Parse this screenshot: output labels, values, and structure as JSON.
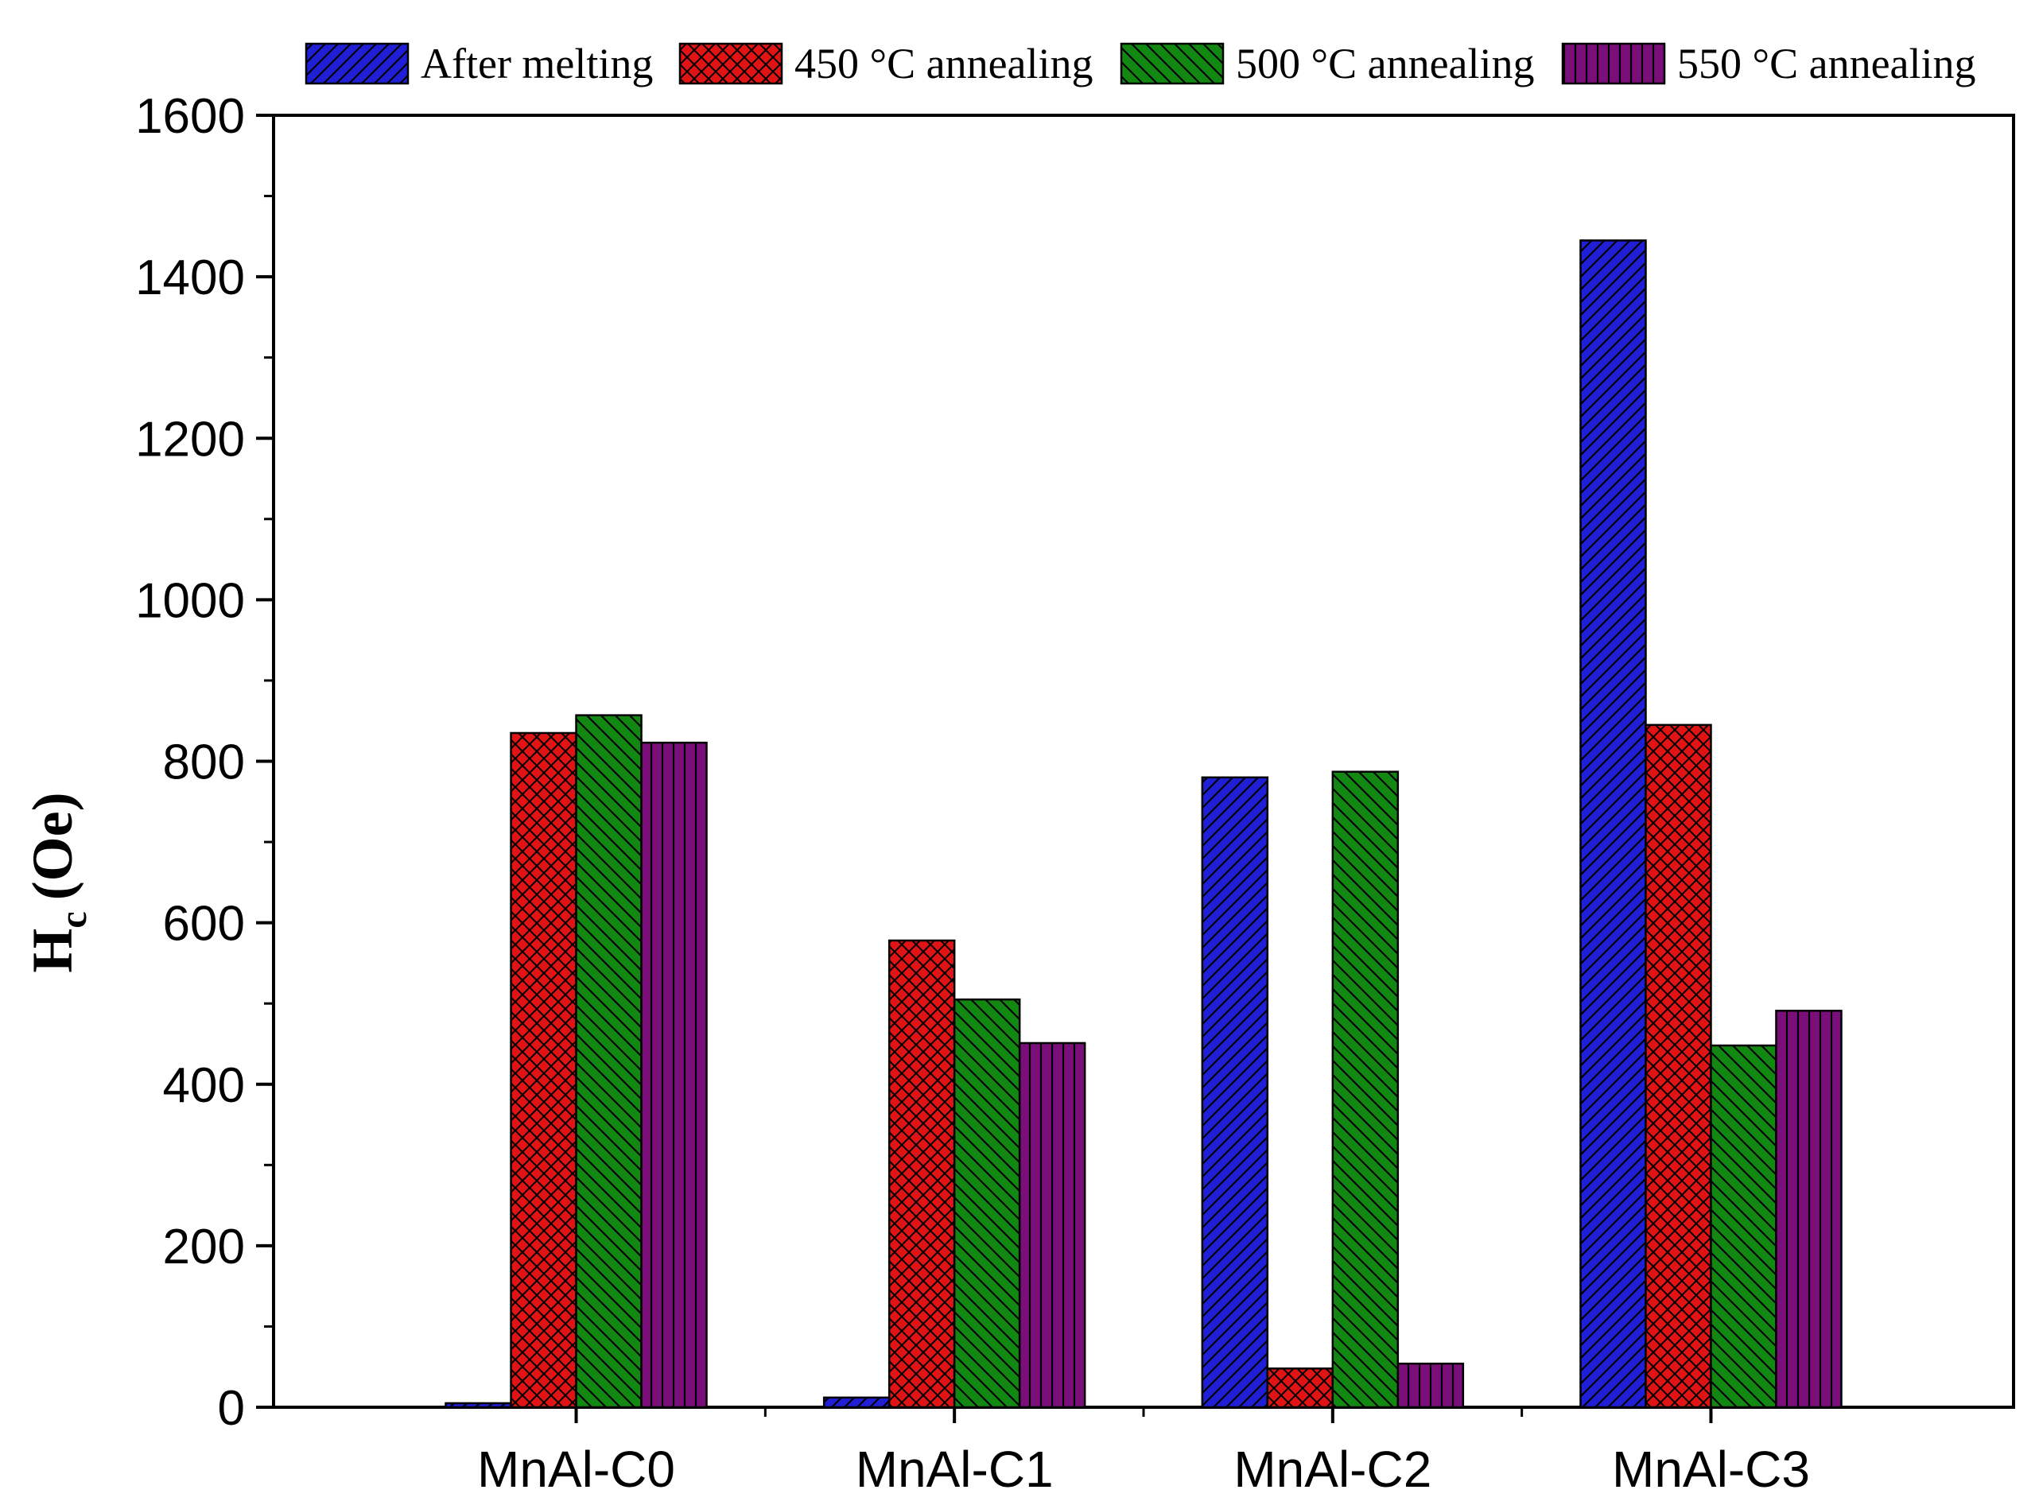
{
  "chart_data": {
    "type": "bar",
    "title": "",
    "xlabel": "",
    "ylabel": "H",
    "ylabel_subscript": "c",
    "ylabel_unit": "(Oe)",
    "ylim": [
      0,
      1600
    ],
    "yticks": [
      0,
      200,
      400,
      600,
      800,
      1000,
      1200,
      1400,
      1600
    ],
    "categories": [
      "MnAl-C0",
      "MnAl-C1",
      "MnAl-C2",
      "MnAl-C3"
    ],
    "legend_position": "top",
    "series": [
      {
        "name": "After melting",
        "color": "#1f1fd6",
        "pattern": "diag-forward",
        "values": [
          5,
          12,
          780,
          1445
        ]
      },
      {
        "name": "450 °C annealing",
        "color": "#e01414",
        "pattern": "crosshatch",
        "values": [
          835,
          578,
          48,
          845
        ]
      },
      {
        "name": "500 °C annealing",
        "color": "#128812",
        "pattern": "diag-back",
        "values": [
          857,
          505,
          787,
          448
        ]
      },
      {
        "name": "550 °C annealing",
        "color": "#7a0f7a",
        "pattern": "vertical",
        "values": [
          823,
          451,
          54,
          491
        ]
      }
    ]
  }
}
